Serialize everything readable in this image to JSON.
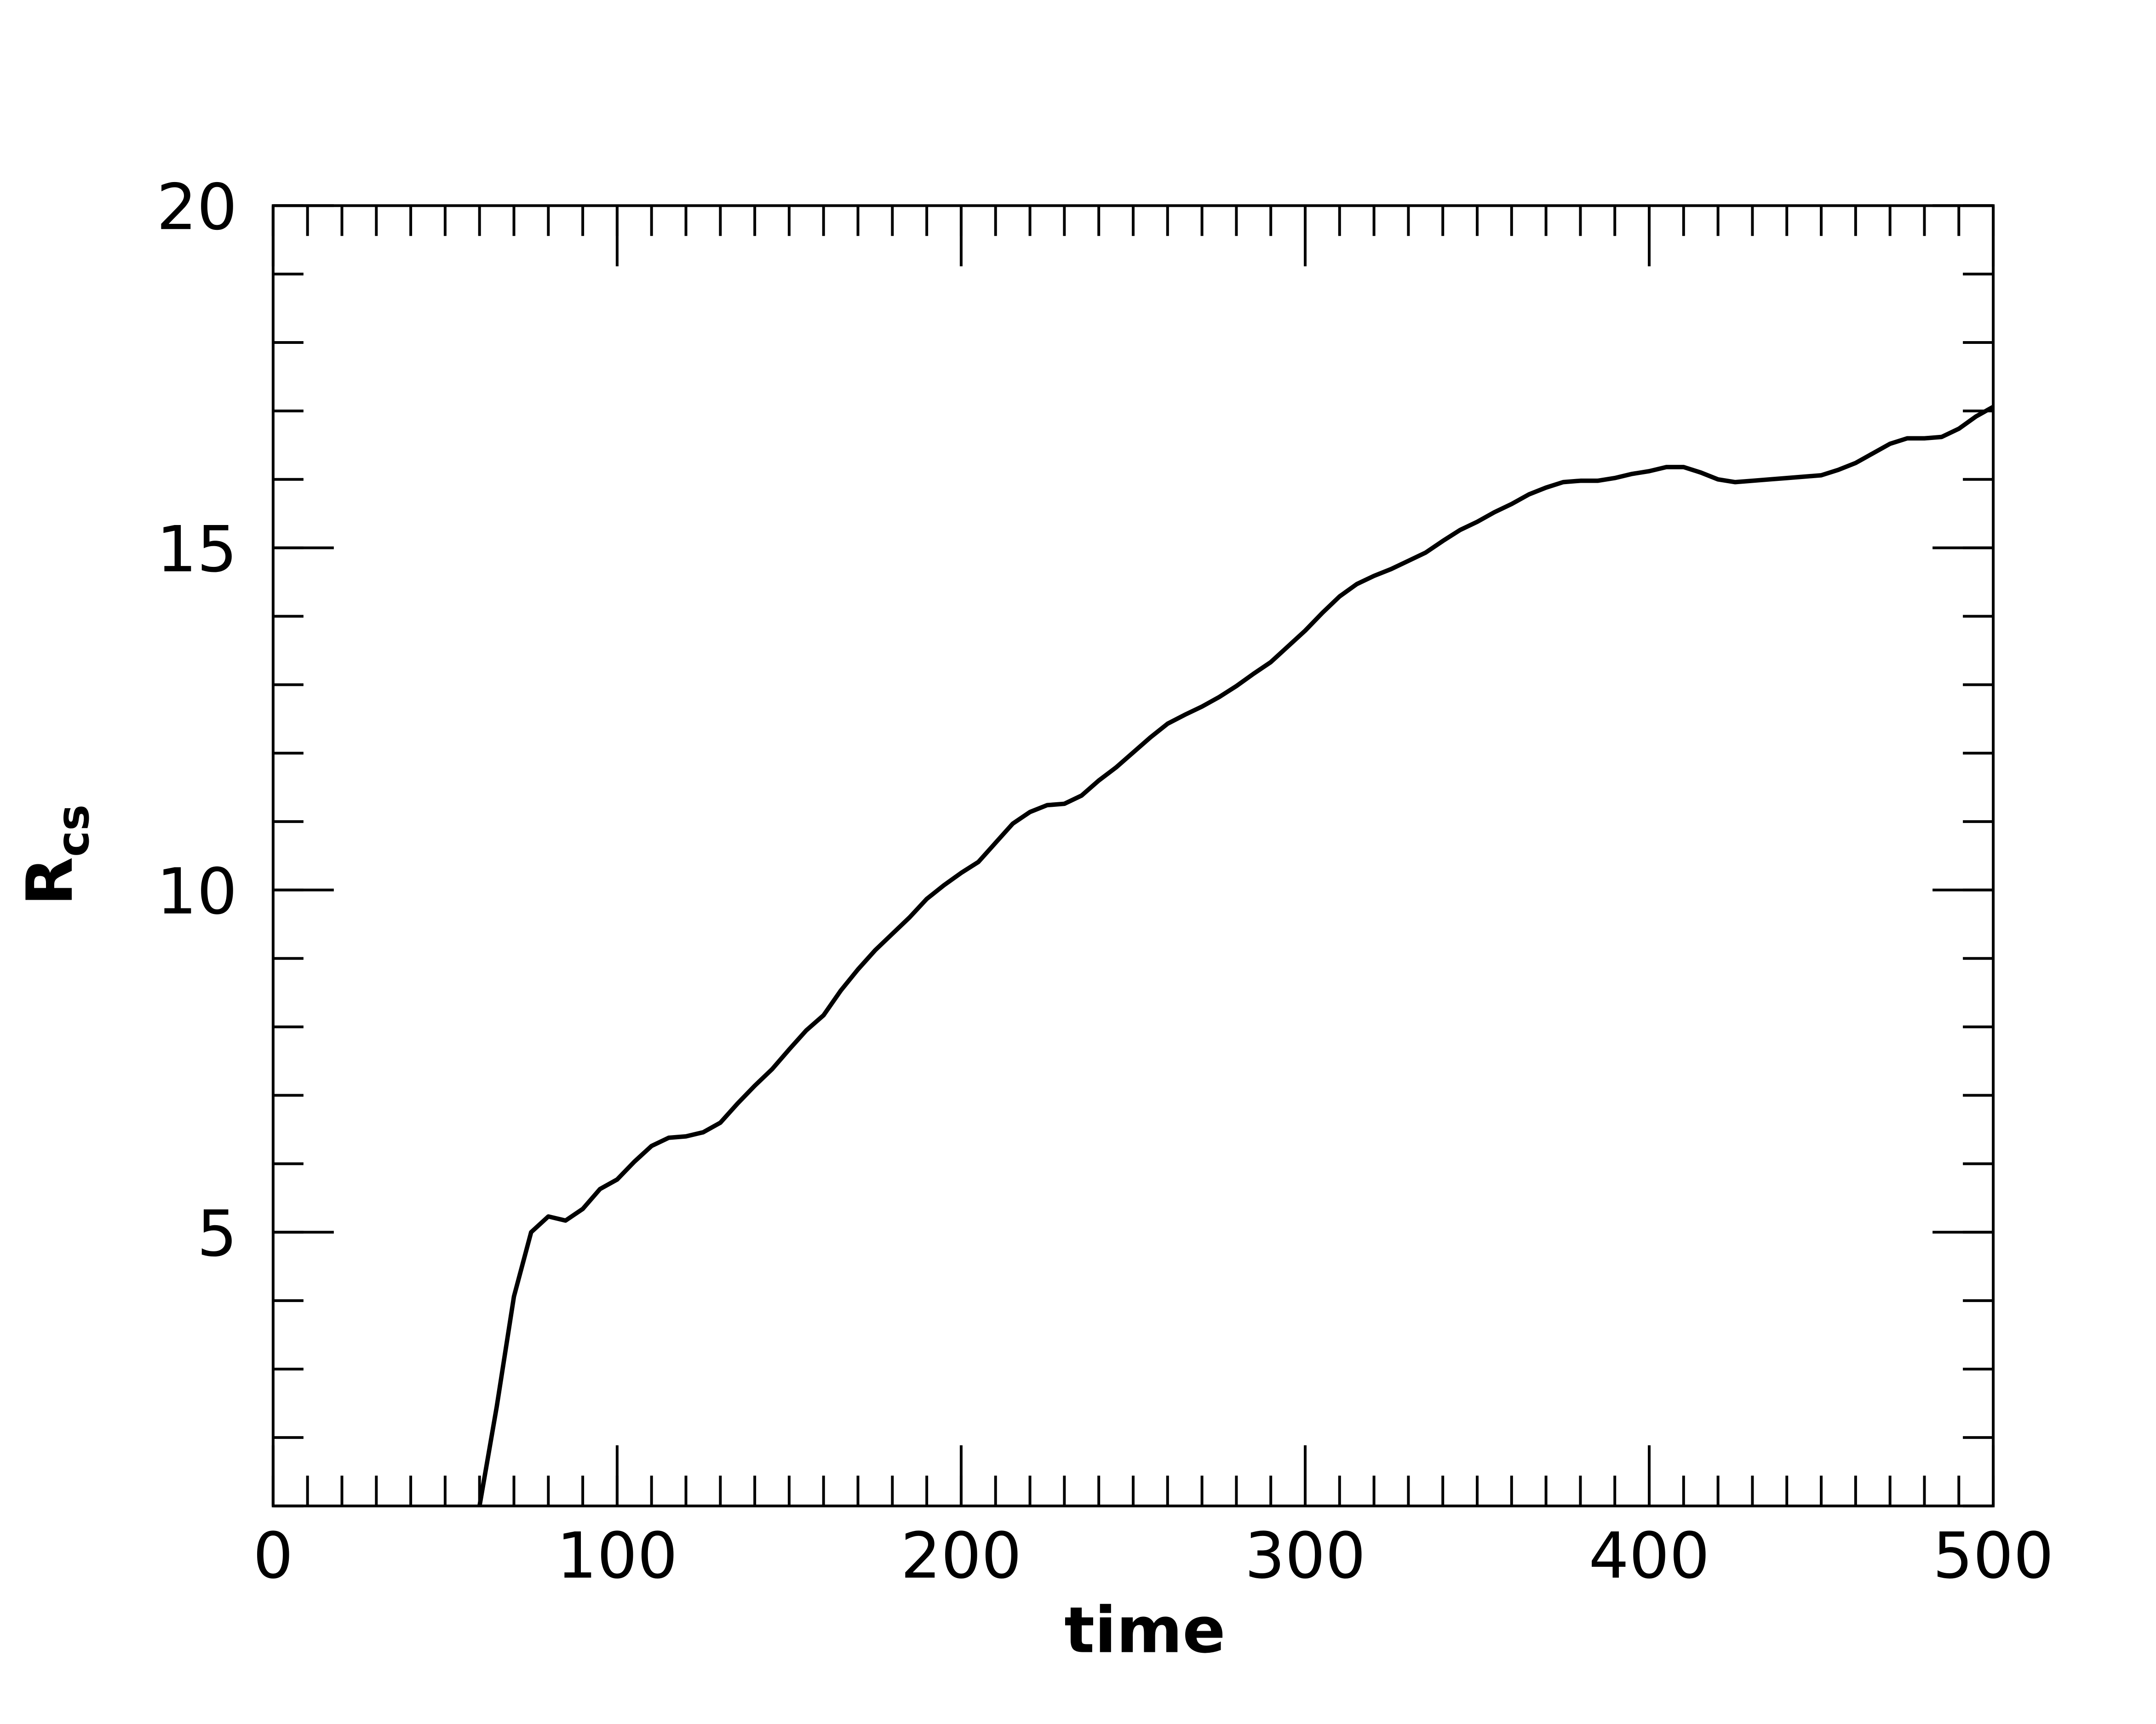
{
  "chart_data": {
    "type": "line",
    "xlabel": "time",
    "ylabel": "R",
    "ylabel_subscript": "cs",
    "xlim": [
      0,
      500
    ],
    "ylim": [
      1,
      20
    ],
    "xticks": [
      0,
      100,
      200,
      300,
      400,
      500
    ],
    "yticks": [
      5,
      10,
      15,
      20
    ],
    "x_minor_step": 10,
    "y_minor_step": 1,
    "x": [
      60,
      65,
      70,
      75,
      80,
      85,
      90,
      95,
      100,
      105,
      110,
      115,
      120,
      125,
      130,
      135,
      140,
      145,
      150,
      155,
      160,
      165,
      170,
      175,
      180,
      185,
      190,
      195,
      200,
      205,
      210,
      215,
      220,
      225,
      230,
      235,
      240,
      245,
      250,
      255,
      260,
      265,
      270,
      275,
      280,
      285,
      290,
      295,
      300,
      305,
      310,
      315,
      320,
      325,
      330,
      335,
      340,
      345,
      350,
      355,
      360,
      365,
      370,
      375,
      380,
      385,
      390,
      395,
      400,
      405,
      410,
      415,
      420,
      425,
      430,
      435,
      440,
      445,
      450,
      455,
      460,
      465,
      470,
      475,
      480,
      485,
      490,
      495,
      500
    ],
    "series": [
      {
        "color": "#000000",
        "values": [
          1.0,
          2.45,
          4.06,
          5.0,
          5.23,
          5.17,
          5.34,
          5.63,
          5.77,
          6.03,
          6.26,
          6.38,
          6.4,
          6.46,
          6.6,
          6.88,
          7.14,
          7.38,
          7.67,
          7.95,
          8.17,
          8.53,
          8.84,
          9.12,
          9.36,
          9.6,
          9.87,
          10.07,
          10.25,
          10.41,
          10.69,
          10.97,
          11.14,
          11.24,
          11.26,
          11.38,
          11.6,
          11.79,
          12.01,
          12.23,
          12.43,
          12.56,
          12.68,
          12.82,
          12.98,
          13.16,
          13.33,
          13.56,
          13.79,
          14.05,
          14.29,
          14.47,
          14.59,
          14.69,
          14.81,
          14.93,
          15.1,
          15.26,
          15.38,
          15.52,
          15.64,
          15.78,
          15.88,
          15.96,
          15.98,
          15.98,
          16.02,
          16.08,
          16.12,
          16.18,
          16.18,
          16.1,
          16.0,
          15.96,
          15.98,
          16.0,
          16.02,
          16.04,
          16.06,
          16.14,
          16.24,
          16.38,
          16.52,
          16.6,
          16.6,
          16.62,
          16.74,
          16.92,
          17.06
        ]
      }
    ]
  }
}
